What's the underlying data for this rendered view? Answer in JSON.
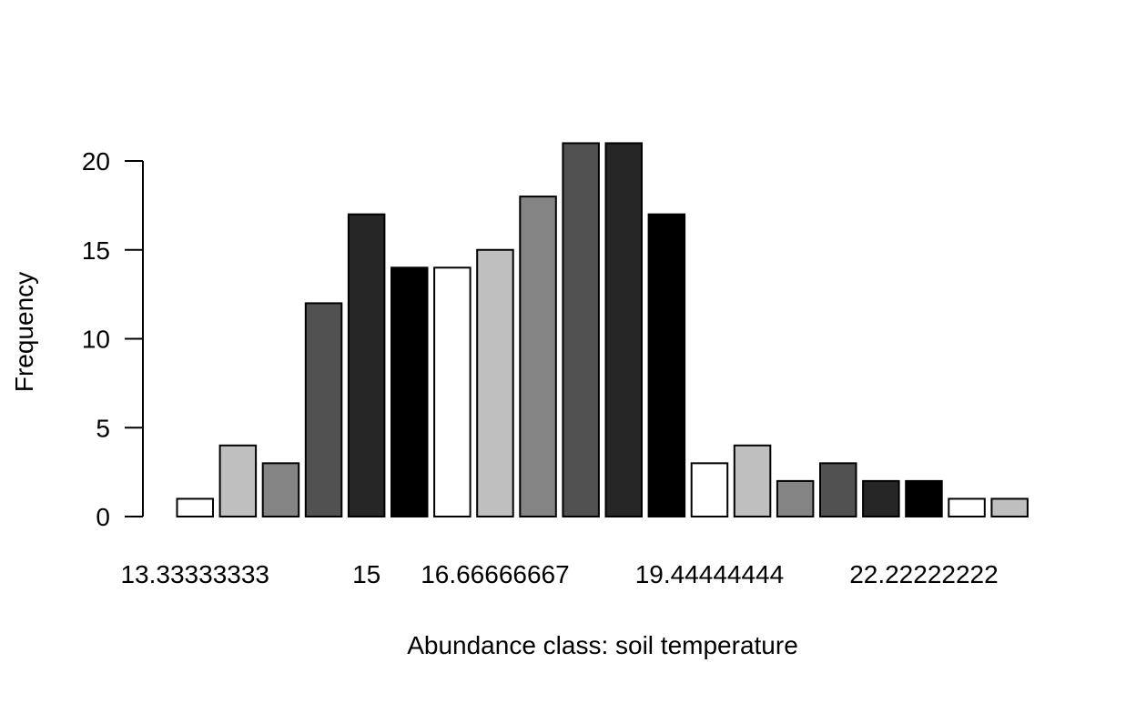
{
  "chart_data": {
    "type": "bar",
    "xlabel": "Abundance class: soil temperature",
    "ylabel": "Frequency",
    "ylim": [
      0,
      20
    ],
    "yticks": [
      0,
      5,
      10,
      15,
      20
    ],
    "x_tick_labels": [
      {
        "bar_index": 0,
        "label": "13.33333333"
      },
      {
        "bar_index": 4,
        "label": "15"
      },
      {
        "bar_index": 7,
        "label": "16.66666667"
      },
      {
        "bar_index": 12,
        "label": "19.44444444"
      },
      {
        "bar_index": 17,
        "label": "22.22222222"
      }
    ],
    "values": [
      1,
      4,
      3,
      12,
      17,
      14,
      14,
      15,
      18,
      21,
      21,
      17,
      3,
      4,
      2,
      3,
      2,
      2,
      1,
      1
    ],
    "colors": [
      "#ffffff",
      "#bfbfbf",
      "#848484",
      "#515151",
      "#262626",
      "#000000"
    ],
    "grid": false,
    "legend": "none"
  }
}
